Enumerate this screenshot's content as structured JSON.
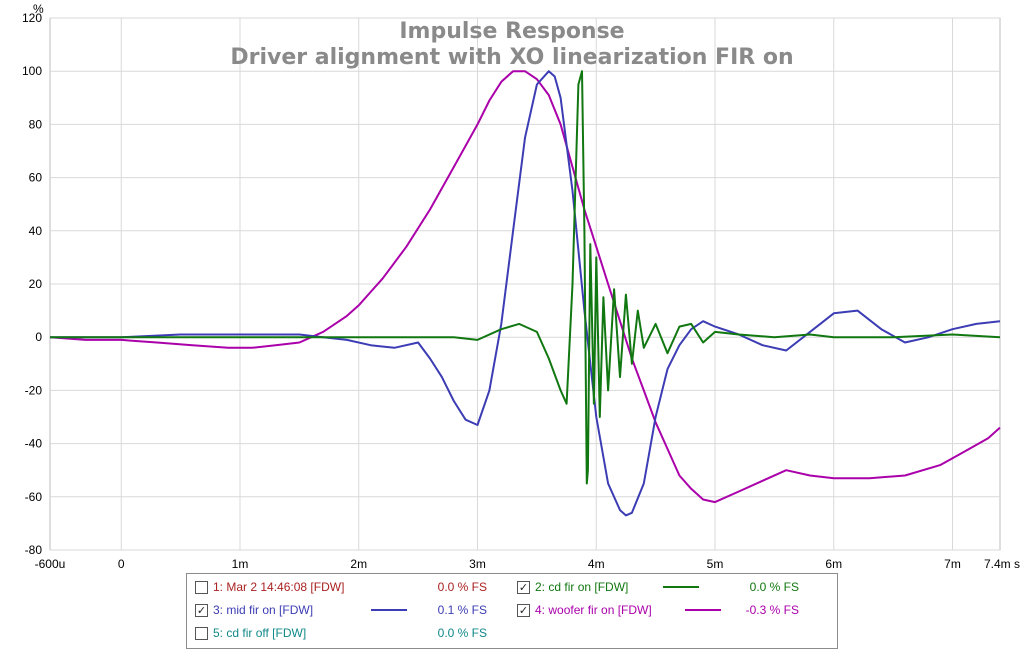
{
  "chart_data": {
    "type": "line",
    "title": "Impulse Response",
    "subtitle": "Driver alignment with XO linearization FIR on",
    "ylabel": "%",
    "xlabel": "",
    "xlim": [
      -0.6,
      7.4
    ],
    "ylim": [
      -80,
      120
    ],
    "grid": true,
    "y_ticks": [
      "120",
      "100",
      "80",
      "60",
      "40",
      "20",
      "0",
      "-20",
      "-40",
      "-60",
      "-80"
    ],
    "y_tick_values": [
      120,
      100,
      80,
      60,
      40,
      20,
      0,
      -20,
      -40,
      -60,
      -80
    ],
    "x_ticks": [
      "-600u",
      "0",
      "1m",
      "2m",
      "3m",
      "4m",
      "5m",
      "6m",
      "7m",
      "7.4m s"
    ],
    "x_tick_values": [
      -0.6,
      0,
      1,
      2,
      3,
      4,
      5,
      6,
      7,
      7.4
    ],
    "series": [
      {
        "name": "woofer fir on [FDW]",
        "color": "#aa00aa",
        "x": [
          -0.6,
          -0.3,
          0,
          0.3,
          0.6,
          0.9,
          1.1,
          1.3,
          1.5,
          1.6,
          1.7,
          1.8,
          1.9,
          2.0,
          2.1,
          2.2,
          2.4,
          2.6,
          2.8,
          3.0,
          3.1,
          3.2,
          3.3,
          3.4,
          3.5,
          3.6,
          3.7,
          3.8,
          3.9,
          4.0,
          4.1,
          4.2,
          4.3,
          4.4,
          4.5,
          4.6,
          4.7,
          4.8,
          4.9,
          5.0,
          5.2,
          5.4,
          5.6,
          5.8,
          6.0,
          6.3,
          6.6,
          6.9,
          7.1,
          7.3,
          7.4
        ],
        "values": [
          0,
          -1,
          -1,
          -2,
          -3,
          -4,
          -4,
          -3,
          -2,
          0,
          2,
          5,
          8,
          12,
          17,
          22,
          34,
          48,
          64,
          80,
          89,
          96,
          100,
          100,
          97,
          91,
          80,
          64,
          48,
          34,
          20,
          6,
          -8,
          -20,
          -32,
          -42,
          -52,
          -57,
          -61,
          -62,
          -58,
          -54,
          -50,
          -52,
          -53,
          -53,
          -52,
          -48,
          -43,
          -38,
          -34
        ]
      },
      {
        "name": "mid fir on [FDW]",
        "color": "#3c3cb4",
        "x": [
          -0.6,
          0,
          0.5,
          1.0,
          1.5,
          1.7,
          1.9,
          2.1,
          2.3,
          2.5,
          2.6,
          2.7,
          2.8,
          2.9,
          3.0,
          3.1,
          3.2,
          3.3,
          3.4,
          3.5,
          3.6,
          3.65,
          3.7,
          3.8,
          3.9,
          4.0,
          4.1,
          4.2,
          4.25,
          4.3,
          4.4,
          4.5,
          4.6,
          4.7,
          4.8,
          4.9,
          5.0,
          5.2,
          5.4,
          5.6,
          5.8,
          6.0,
          6.2,
          6.4,
          6.6,
          6.8,
          7.0,
          7.2,
          7.4
        ],
        "values": [
          0,
          0,
          1,
          1,
          1,
          0,
          -1,
          -3,
          -4,
          -2,
          -8,
          -15,
          -24,
          -31,
          -33,
          -20,
          5,
          40,
          75,
          95,
          100,
          98,
          90,
          55,
          10,
          -30,
          -55,
          -65,
          -67,
          -66,
          -55,
          -30,
          -12,
          -3,
          3,
          6,
          4,
          1,
          -3,
          -5,
          2,
          9,
          10,
          3,
          -2,
          0,
          3,
          5,
          6
        ]
      },
      {
        "name": "cd fir on [FDW]",
        "color": "#117711",
        "x": [
          -0.6,
          1.0,
          2.0,
          2.5,
          2.8,
          3.0,
          3.2,
          3.35,
          3.5,
          3.6,
          3.7,
          3.75,
          3.8,
          3.85,
          3.88,
          3.9,
          3.92,
          3.93,
          3.95,
          3.98,
          4.0,
          4.03,
          4.06,
          4.1,
          4.15,
          4.2,
          4.25,
          4.3,
          4.35,
          4.4,
          4.5,
          4.6,
          4.7,
          4.8,
          4.9,
          5.0,
          5.2,
          5.5,
          5.8,
          6.0,
          6.5,
          7.0,
          7.4
        ],
        "values": [
          0,
          0,
          0,
          0,
          0,
          -1,
          3,
          5,
          2,
          -8,
          -20,
          -25,
          20,
          95,
          100,
          40,
          -55,
          -50,
          35,
          -25,
          30,
          -30,
          15,
          -20,
          18,
          -15,
          16,
          -10,
          10,
          -4,
          5,
          -6,
          4,
          5,
          -2,
          2,
          1,
          0,
          1,
          0,
          0,
          1,
          0
        ]
      },
      {
        "name": "Mar 2 14:46:08 [FDW]",
        "color": "#aa2222",
        "visible": false,
        "x": [],
        "values": []
      },
      {
        "name": "cd fir off [FDW]",
        "color": "#118888",
        "visible": false,
        "x": [],
        "values": []
      }
    ]
  },
  "legend": [
    {
      "index": "1:",
      "name": "Mar 2 14:46:08 [FDW]",
      "checked": false,
      "value": "0.0 % FS",
      "color": "#aa2222",
      "show_line": false
    },
    {
      "index": "2:",
      "name": "cd fir on [FDW]",
      "checked": true,
      "value": "0.0 % FS",
      "color": "#117711",
      "show_line": true
    },
    {
      "index": "3:",
      "name": "mid fir on [FDW]",
      "checked": true,
      "value": "0.1 % FS",
      "color": "#3c3cb4",
      "show_line": true
    },
    {
      "index": "4:",
      "name": "woofer fir on [FDW]",
      "checked": true,
      "value": "-0.3 % FS",
      "color": "#aa00aa",
      "show_line": true
    },
    {
      "index": "5:",
      "name": "cd fir off [FDW]",
      "checked": false,
      "value": "0.0 % FS",
      "color": "#118888",
      "show_line": false
    }
  ]
}
